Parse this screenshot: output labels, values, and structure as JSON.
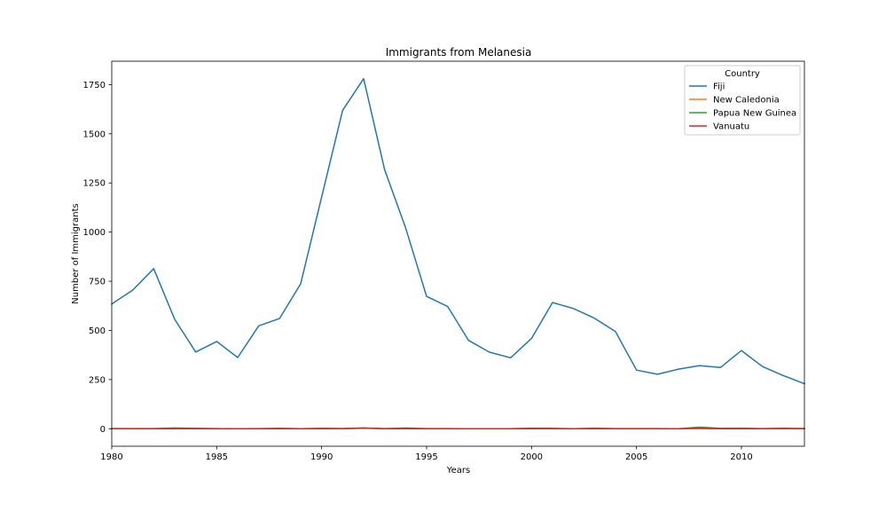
{
  "chart_data": {
    "type": "line",
    "title": "Immigrants from Melanesia",
    "xlabel": "Years",
    "ylabel": "Number of Immigrants",
    "xlim": [
      1980,
      2013
    ],
    "ylim": [
      -89,
      1869
    ],
    "x_ticks": [
      1980,
      1985,
      1990,
      1995,
      2000,
      2005,
      2010
    ],
    "y_ticks": [
      0,
      250,
      500,
      750,
      1000,
      1250,
      1500,
      1750
    ],
    "grid": false,
    "legend_title": "Country",
    "legend_position": "top-right",
    "x": [
      1980,
      1981,
      1982,
      1983,
      1984,
      1985,
      1986,
      1987,
      1988,
      1989,
      1990,
      1991,
      1992,
      1993,
      1994,
      1995,
      1996,
      1997,
      1998,
      1999,
      2000,
      2001,
      2002,
      2003,
      2004,
      2005,
      2006,
      2007,
      2008,
      2009,
      2010,
      2011,
      2012,
      2013
    ],
    "series": [
      {
        "name": "Fiji",
        "color": "#1f77b4",
        "values": [
          634,
          705,
          814,
          556,
          390,
          444,
          362,
          523,
          561,
          737,
          1179,
          1619,
          1780,
          1317,
          1022,
          673,
          622,
          449,
          389,
          361,
          459,
          642,
          611,
          562,
          494,
          298,
          277,
          303,
          321,
          311,
          398,
          316,
          270,
          229
        ]
      },
      {
        "name": "New Caledonia",
        "color": "#ff7f0e",
        "values": [
          1,
          0,
          0,
          1,
          0,
          0,
          0,
          0,
          1,
          0,
          0,
          0,
          2,
          0,
          1,
          0,
          0,
          0,
          0,
          0,
          1,
          0,
          0,
          0,
          0,
          0,
          0,
          0,
          1,
          0,
          0,
          0,
          0,
          0
        ]
      },
      {
        "name": "Papua New Guinea",
        "color": "#2ca02c",
        "values": [
          1,
          1,
          1,
          4,
          2,
          1,
          0,
          1,
          2,
          0,
          2,
          1,
          3,
          1,
          4,
          1,
          1,
          0,
          0,
          0,
          3,
          2,
          0,
          3,
          1,
          1,
          1,
          0,
          8,
          2,
          3,
          1,
          1,
          1
        ]
      },
      {
        "name": "Vanuatu",
        "color": "#d62728",
        "values": [
          0,
          0,
          0,
          0,
          0,
          0,
          0,
          0,
          0,
          0,
          1,
          1,
          4,
          0,
          0,
          0,
          0,
          0,
          0,
          0,
          0,
          1,
          0,
          0,
          0,
          0,
          0,
          0,
          2,
          0,
          0,
          0,
          2,
          1
        ]
      }
    ]
  }
}
